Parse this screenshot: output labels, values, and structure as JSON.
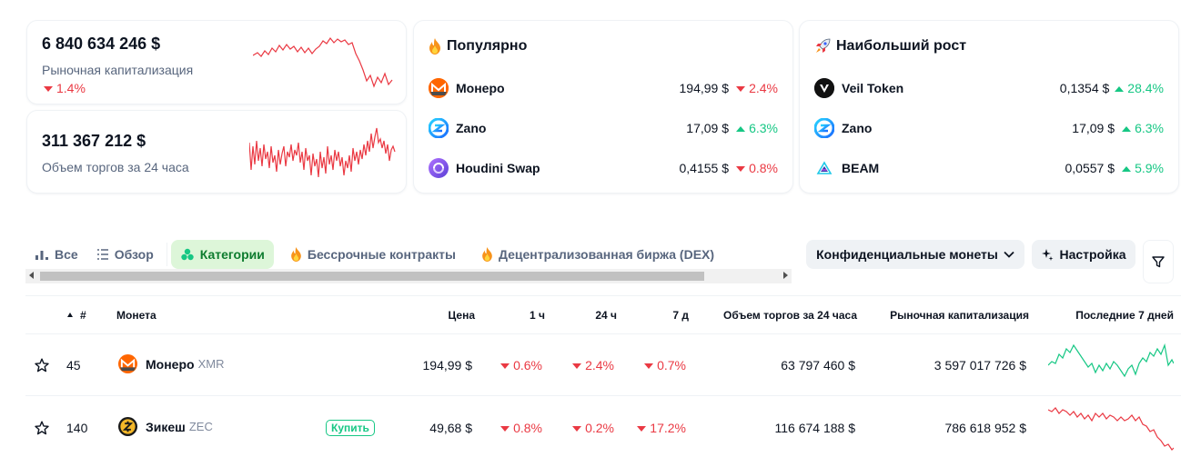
{
  "stats": {
    "market_cap": {
      "value": "6 840 634 246 $",
      "label": "Рыночная капитализация",
      "change": "1.4%"
    },
    "volume": {
      "value": "311 367 212 $",
      "label": "Объем торгов за 24 часа"
    }
  },
  "popular": {
    "title": "Популярно",
    "icon": "fire-icon",
    "items": [
      {
        "name": "Монеро",
        "price": "194,99 $",
        "change": "2.4%",
        "dir": "down",
        "icon": "monero-icon"
      },
      {
        "name": "Zano",
        "price": "17,09 $",
        "change": "6.3%",
        "dir": "up",
        "icon": "zano-icon"
      },
      {
        "name": "Houdini Swap",
        "price": "0,4155 $",
        "change": "0.8%",
        "dir": "down",
        "icon": "houdini-icon"
      }
    ]
  },
  "gainers": {
    "title": "Наибольший рост",
    "icon": "rocket-icon",
    "items": [
      {
        "name": "Veil Token",
        "price": "0,1354 $",
        "change": "28.4%",
        "dir": "up",
        "icon": "veil-icon"
      },
      {
        "name": "Zano",
        "price": "17,09 $",
        "change": "6.3%",
        "dir": "up",
        "icon": "zano-icon"
      },
      {
        "name": "BEAM",
        "price": "0,0557 $",
        "change": "5.9%",
        "dir": "up",
        "icon": "beam-icon"
      }
    ]
  },
  "tabs": [
    {
      "label": "Все",
      "icon": "chart-icon"
    },
    {
      "label": "Обзор",
      "icon": "list-icon"
    },
    {
      "label": "Категории",
      "icon": "clover-icon",
      "active": true
    },
    {
      "label": "Бессрочные контракты",
      "icon": "fire-icon"
    },
    {
      "label": "Децентрализованная биржа (DEX)",
      "icon": "fire-icon"
    }
  ],
  "toolbar": {
    "category_select": "Конфиденциальные монеты",
    "settings_label": "Настройка"
  },
  "table": {
    "columns": {
      "rank": "#",
      "coin": "Монета",
      "price": "Цена",
      "h1": "1 ч",
      "h24": "24 ч",
      "d7": "7 д",
      "volume": "Объем торгов за 24 часа",
      "mcap": "Рыночная капитализация",
      "last7": "Последние 7 дней"
    },
    "rows": [
      {
        "rank": "45",
        "name": "Монеро",
        "symbol": "XMR",
        "price": "194,99 $",
        "h1": "0.6%",
        "h24": "2.4%",
        "d7": "0.7%",
        "volume": "63 797 460 $",
        "mcap": "3 597 017 726 $",
        "trend": "up",
        "icon": "monero-icon"
      },
      {
        "rank": "140",
        "name": "Зикеш",
        "symbol": "ZEC",
        "buy": "Купить",
        "price": "49,68 $",
        "h1": "0.8%",
        "h24": "0.2%",
        "d7": "17.2%",
        "volume": "116 674 188 $",
        "mcap": "786 618 952 $",
        "trend": "down",
        "icon": "zcash-icon"
      }
    ]
  },
  "colors": {
    "up": "#16c784",
    "down": "#ea3943",
    "active_tab_bg": "#ddf6d9"
  }
}
